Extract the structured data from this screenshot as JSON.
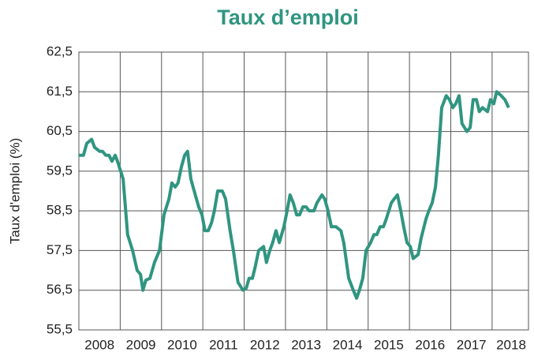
{
  "chart_data": {
    "type": "line",
    "title": "Taux d’emploi",
    "y_label": "Taux d'emploi (%)",
    "xlim": [
      2008,
      2018.88
    ],
    "ylim": [
      55.5,
      62.5
    ],
    "xticks": [
      {
        "value": 2008.5,
        "label": "2008"
      },
      {
        "value": 2009.5,
        "label": "2009"
      },
      {
        "value": 2010.5,
        "label": "2010"
      },
      {
        "value": 2011.5,
        "label": "2011"
      },
      {
        "value": 2012.5,
        "label": "2012"
      },
      {
        "value": 2013.5,
        "label": "2013"
      },
      {
        "value": 2014.5,
        "label": "2014"
      },
      {
        "value": 2015.5,
        "label": "2015"
      },
      {
        "value": 2016.5,
        "label": "2016"
      },
      {
        "value": 2017.5,
        "label": "2017"
      },
      {
        "value": 2018.46,
        "label": "2018"
      }
    ],
    "xgrid": [
      2009,
      2010,
      2011,
      2012,
      2013,
      2014,
      2015,
      2016,
      2017,
      2018
    ],
    "yticks": [
      {
        "value": 55.5,
        "label": "55,5"
      },
      {
        "value": 56.5,
        "label": "56,5"
      },
      {
        "value": 57.5,
        "label": "57,5"
      },
      {
        "value": 58.5,
        "label": "58,5"
      },
      {
        "value": 59.5,
        "label": "59,5"
      },
      {
        "value": 60.5,
        "label": "60,5"
      },
      {
        "value": 61.5,
        "label": "61,5"
      },
      {
        "value": 62.5,
        "label": "62,5"
      }
    ],
    "grid": true,
    "series": [
      {
        "name": "Taux d'emploi",
        "color": "#2f9580",
        "x": [
          2008.0,
          2008.11,
          2008.19,
          2008.31,
          2008.38,
          2008.5,
          2008.57,
          2008.65,
          2008.73,
          2008.8,
          2008.88,
          2008.95,
          2009.07,
          2009.18,
          2009.3,
          2009.41,
          2009.49,
          2009.55,
          2009.62,
          2009.72,
          2009.83,
          2009.95,
          2010.06,
          2010.18,
          2010.25,
          2010.33,
          2010.4,
          2010.48,
          2010.56,
          2010.63,
          2010.71,
          2010.79,
          2010.9,
          2010.98,
          2011.05,
          2011.13,
          2011.21,
          2011.28,
          2011.36,
          2011.47,
          2011.55,
          2011.66,
          2011.74,
          2011.85,
          2011.97,
          2012.05,
          2012.12,
          2012.2,
          2012.27,
          2012.35,
          2012.47,
          2012.54,
          2012.62,
          2012.69,
          2012.77,
          2012.85,
          2012.96,
          2013.04,
          2013.11,
          2013.19,
          2013.27,
          2013.34,
          2013.42,
          2013.5,
          2013.57,
          2013.69,
          2013.76,
          2013.88,
          2013.95,
          2014.03,
          2014.11,
          2014.22,
          2014.34,
          2014.41,
          2014.53,
          2014.64,
          2014.72,
          2014.79,
          2014.87,
          2014.95,
          2015.06,
          2015.14,
          2015.21,
          2015.29,
          2015.37,
          2015.44,
          2015.56,
          2015.63,
          2015.71,
          2015.79,
          2015.86,
          2015.94,
          2016.02,
          2016.09,
          2016.21,
          2016.28,
          2016.4,
          2016.47,
          2016.55,
          2016.63,
          2016.7,
          2016.78,
          2016.89,
          2016.97,
          2017.05,
          2017.12,
          2017.2,
          2017.27,
          2017.39,
          2017.47,
          2017.54,
          2017.62,
          2017.69,
          2017.77,
          2017.89,
          2017.96,
          2018.04,
          2018.11,
          2018.22,
          2018.31,
          2018.4
        ],
        "values": [
          59.9,
          59.9,
          60.2,
          60.3,
          60.1,
          60.0,
          60.0,
          59.9,
          59.9,
          59.75,
          59.9,
          59.7,
          59.3,
          57.9,
          57.5,
          57.0,
          56.9,
          56.5,
          56.75,
          56.8,
          57.2,
          57.5,
          58.4,
          58.8,
          59.2,
          59.1,
          59.2,
          59.6,
          59.9,
          60.0,
          59.3,
          59.0,
          58.6,
          58.4,
          58.0,
          58.0,
          58.2,
          58.5,
          59.0,
          59.0,
          58.8,
          58.0,
          57.5,
          56.7,
          56.5,
          56.55,
          56.8,
          56.8,
          57.1,
          57.5,
          57.6,
          57.2,
          57.5,
          57.7,
          58.0,
          57.7,
          58.1,
          58.5,
          58.9,
          58.7,
          58.4,
          58.4,
          58.6,
          58.6,
          58.5,
          58.5,
          58.7,
          58.9,
          58.8,
          58.5,
          58.1,
          58.1,
          58.0,
          57.7,
          56.8,
          56.5,
          56.3,
          56.5,
          56.8,
          57.5,
          57.7,
          57.9,
          57.9,
          58.1,
          58.1,
          58.3,
          58.7,
          58.8,
          58.9,
          58.5,
          58.1,
          57.7,
          57.6,
          57.3,
          57.4,
          57.8,
          58.3,
          58.5,
          58.7,
          59.1,
          59.9,
          61.1,
          61.4,
          61.3,
          61.1,
          61.2,
          61.4,
          60.7,
          60.5,
          60.6,
          61.3,
          61.3,
          61.0,
          61.1,
          61.0,
          61.3,
          61.2,
          61.5,
          61.4,
          61.3,
          61.1
        ]
      }
    ]
  }
}
